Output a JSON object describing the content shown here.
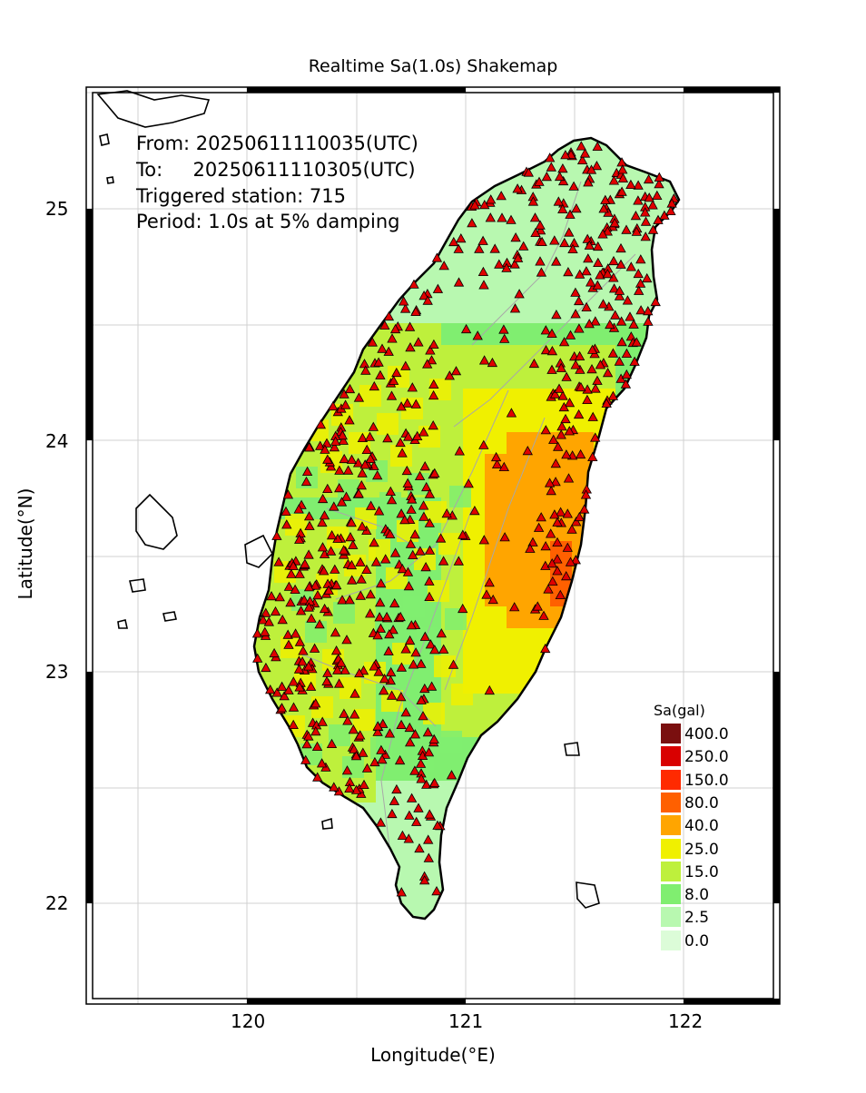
{
  "title": "Realtime Sa(1.0s) Shakemap",
  "info": {
    "from": "From: 20250611110035(UTC)",
    "to": "To:     20250611110305(UTC)",
    "triggered": "Triggered station: 715",
    "period": "Period: 1.0s at 5% damping"
  },
  "axes": {
    "xlabel": "Longitude(°E)",
    "ylabel": "Latitude(°N)",
    "xticks": [
      "120",
      "121",
      "122"
    ],
    "yticks": [
      "25",
      "24",
      "23",
      "22"
    ],
    "xrange": [
      119.28,
      122.4
    ],
    "yrange": [
      21.6,
      25.55
    ]
  },
  "legend": {
    "title": "Sa(gal)",
    "items": [
      {
        "label": "400.0",
        "color": "#7a0f0f"
      },
      {
        "label": "250.0",
        "color": "#d90000"
      },
      {
        "label": "150.0",
        "color": "#ff2a00"
      },
      {
        "label": "80.0",
        "color": "#ff6000"
      },
      {
        "label": "40.0",
        "color": "#ffa500"
      },
      {
        "label": "25.0",
        "color": "#f0f000"
      },
      {
        "label": "15.0",
        "color": "#bef03c"
      },
      {
        "label": "8.0",
        "color": "#80ee70"
      },
      {
        "label": "2.5",
        "color": "#b8f8b0"
      },
      {
        "label": "0.0",
        "color": "#dcfcd8"
      }
    ]
  },
  "colors": {
    "station_fill": "#e00000",
    "coastline": "#000000",
    "grid": "#d0d0d0",
    "rivers": "#a8a8a8"
  }
}
